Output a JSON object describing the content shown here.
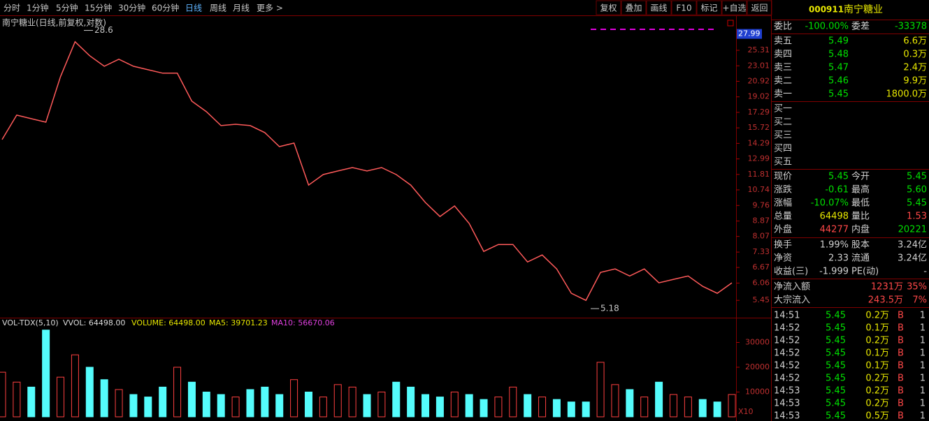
{
  "toolbar": {
    "periods": [
      "分时",
      "1分钟",
      "5分钟",
      "15分钟",
      "30分钟",
      "60分钟",
      "日线",
      "周线",
      "月线",
      "更多 >"
    ],
    "buttons": [
      "复权",
      "叠加",
      "画线",
      "F10",
      "标记",
      "+自选",
      "返回"
    ]
  },
  "chart_data": [
    {
      "type": "line",
      "title": "南宁糖业(日线,前复权,对数)",
      "log_scale": true,
      "color": "#ff5a5a",
      "values": [
        14.63,
        17.0,
        16.63,
        16.28,
        21.52,
        26.67,
        24.48,
        22.95,
        23.96,
        22.95,
        22.46,
        21.99,
        21.99,
        18.52,
        17.36,
        15.94,
        16.07,
        15.94,
        15.27,
        14.01,
        14.32,
        11.06,
        11.8,
        12.06,
        12.32,
        12.06,
        12.32,
        11.8,
        11.06,
        9.94,
        9.12,
        9.73,
        8.74,
        7.36,
        7.68,
        7.68,
        6.9,
        7.2,
        6.61,
        5.69,
        5.45,
        6.47,
        6.61,
        6.33,
        6.61,
        6.07,
        6.2,
        6.33,
        5.94,
        5.69,
        6.07
      ],
      "high": 28.6,
      "low": 5.18,
      "last_tag": 27.99,
      "ylim": [
        4.9,
        31.1
      ],
      "yticks": [
        25.31,
        23.01,
        20.92,
        19.02,
        17.29,
        15.72,
        14.29,
        12.99,
        11.81,
        10.74,
        9.76,
        8.87,
        8.07,
        7.33,
        6.67,
        6.06,
        5.45
      ]
    },
    {
      "type": "bar",
      "legend": [
        "VOL-TDX(5,10)",
        "VVOL: 64498.00",
        "VOLUME: 64498.00",
        "MA5: 39701.23",
        "MA10: 56670.06"
      ],
      "scale_label": "X10",
      "values": [
        18000,
        14000,
        12000,
        35000,
        16000,
        25000,
        20000,
        15000,
        11000,
        9000,
        8000,
        12000,
        20000,
        14000,
        10000,
        9000,
        8000,
        11000,
        12000,
        9000,
        15000,
        10000,
        8000,
        13000,
        12000,
        9000,
        10000,
        14000,
        12000,
        9000,
        8000,
        10000,
        9000,
        7000,
        8000,
        12000,
        9000,
        8000,
        7000,
        6000,
        6000,
        22000,
        13000,
        11000,
        8000,
        14000,
        9000,
        8000,
        7000,
        6000,
        9000
      ],
      "ylim": [
        0,
        40000
      ],
      "yticks": [
        30000,
        20000,
        10000
      ]
    }
  ],
  "panel": {
    "code": "000911",
    "name": "南宁糖业",
    "ratio": [
      "委比",
      "-100.00%",
      "委差",
      "-33378"
    ],
    "asks": [
      [
        "卖五",
        "5.49",
        "6.6万"
      ],
      [
        "卖四",
        "5.48",
        "0.3万"
      ],
      [
        "卖三",
        "5.47",
        "2.4万"
      ],
      [
        "卖二",
        "5.46",
        "9.9万"
      ],
      [
        "卖一",
        "5.45",
        "1800.0万"
      ]
    ],
    "bids": [
      "买一",
      "买二",
      "买三",
      "买四",
      "买五"
    ],
    "quote": [
      [
        "现价",
        "5.45",
        "今开",
        "5.45"
      ],
      [
        "涨跌",
        "-0.61",
        "最高",
        "5.60"
      ],
      [
        "涨幅",
        "-10.07%",
        "最低",
        "5.45"
      ],
      [
        "总量",
        "64498",
        "量比",
        "1.53"
      ],
      [
        "外盘",
        "44277",
        "内盘",
        "20221"
      ]
    ],
    "finance": [
      [
        "换手",
        "1.99%",
        "股本",
        "3.24亿"
      ],
      [
        "净资",
        "2.33",
        "流通",
        "3.24亿"
      ],
      [
        "收益(三)",
        "-1.999",
        "PE(动)",
        "-"
      ]
    ],
    "flow": [
      [
        "净流入额",
        "1231万",
        "35%"
      ],
      [
        "大宗流入",
        "243.5万",
        "7%"
      ]
    ],
    "trades": [
      [
        "14:51",
        "5.45",
        "0.2万",
        "B",
        "1"
      ],
      [
        "14:52",
        "5.45",
        "0.1万",
        "B",
        "1"
      ],
      [
        "14:52",
        "5.45",
        "0.2万",
        "B",
        "1"
      ],
      [
        "14:52",
        "5.45",
        "0.1万",
        "B",
        "1"
      ],
      [
        "14:52",
        "5.45",
        "0.1万",
        "B",
        "1"
      ],
      [
        "14:52",
        "5.45",
        "0.2万",
        "B",
        "1"
      ],
      [
        "14:53",
        "5.45",
        "0.2万",
        "B",
        "1"
      ],
      [
        "14:53",
        "5.45",
        "0.2万",
        "B",
        "1"
      ],
      [
        "14:53",
        "5.45",
        "0.5万",
        "B",
        "1"
      ]
    ]
  }
}
